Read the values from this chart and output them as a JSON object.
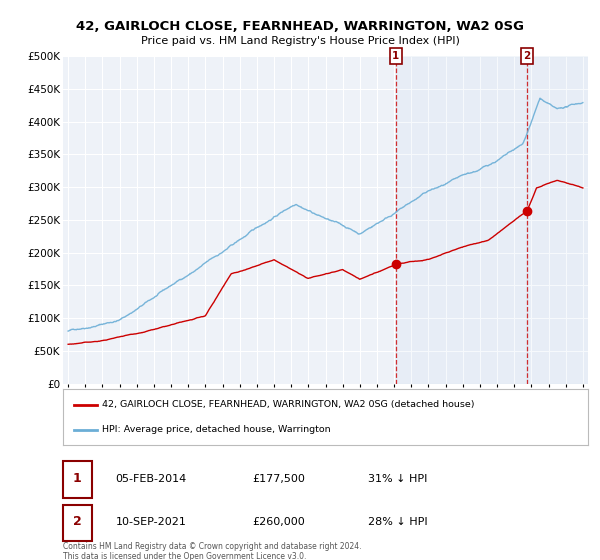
{
  "title": "42, GAIRLOCH CLOSE, FEARNHEAD, WARRINGTON, WA2 0SG",
  "subtitle": "Price paid vs. HM Land Registry's House Price Index (HPI)",
  "legend_line1": "42, GAIRLOCH CLOSE, FEARNHEAD, WARRINGTON, WA2 0SG (detached house)",
  "legend_line2": "HPI: Average price, detached house, Warrington",
  "annotation1_date": "05-FEB-2014",
  "annotation1_price": "£177,500",
  "annotation1_hpi": "31% ↓ HPI",
  "annotation2_date": "10-SEP-2021",
  "annotation2_price": "£260,000",
  "annotation2_hpi": "28% ↓ HPI",
  "footer": "Contains HM Land Registry data © Crown copyright and database right 2024.\nThis data is licensed under the Open Government Licence v3.0.",
  "ylim": [
    0,
    500000
  ],
  "yticks": [
    0,
    50000,
    100000,
    150000,
    200000,
    250000,
    300000,
    350000,
    400000,
    450000,
    500000
  ],
  "hpi_color": "#6baed6",
  "price_color": "#cc0000",
  "vline_color": "#cc0000",
  "bg_color": "#ffffff",
  "plot_bg_color": "#eef2f8",
  "grid_color": "#ffffff",
  "sale1_year": 2014.1,
  "sale2_year": 2021.75,
  "xmin": 1995,
  "xmax": 2025
}
